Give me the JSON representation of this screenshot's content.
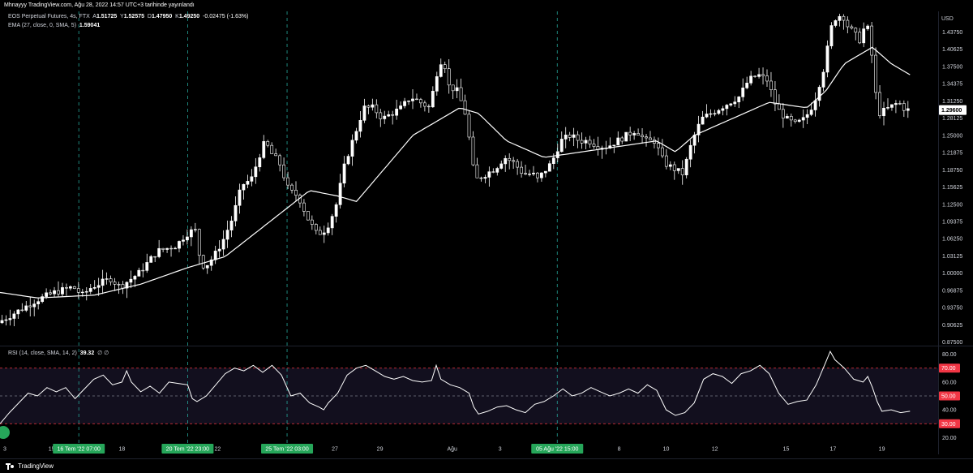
{
  "header": {
    "publish_info": "Mhnayyy TradingView.com, Ağu 28, 2022 14:57 UTC+3 tarihinde yayınlandı"
  },
  "legend": {
    "symbol": "EOS Perpetual Futures, 4s, FTX",
    "open_label": "A",
    "open": "1.51725",
    "high_label": "Y",
    "high": "1.52575",
    "low_label": "D",
    "low": "1.47950",
    "close_label": "K",
    "close": "1.49250",
    "change": "-0.02475 (-1.63%)",
    "ema_label": "EMA (27, close, 0, SMA, 5)",
    "ema_value": "1.59041",
    "rsi_label": "RSI (14, close, SMA, 14, 2)",
    "rsi_value": "39.32",
    "rsi_extra": "∅ ∅"
  },
  "footer": {
    "brand": "TradingView"
  },
  "colors": {
    "background": "#000000",
    "candle": "#ffffff",
    "ema": "#ffffff",
    "rsi_line": "#ffffff",
    "rsi_band": "#120f1e",
    "rsi_upper": "#f23645",
    "rsi_lower": "#f23645",
    "rsi_mid": "#787b86",
    "vline": "#26a69a",
    "grid": "#0d0d0d",
    "price_badge": "#ffffff",
    "date_badge": "#26a65a",
    "rsi_badge": "#f23645"
  },
  "chart_data": [
    {
      "type": "candlestick",
      "title": "EOS Perpetual Futures, 4s, FTX",
      "currency": "USD",
      "ylim": [
        0.87,
        1.475
      ],
      "y_ticks": [
        "1.43750",
        "1.40625",
        "1.37500",
        "1.34375",
        "1.31250",
        "1.28125",
        "1.25000",
        "1.21875",
        "1.18750",
        "1.15625",
        "1.12500",
        "1.09375",
        "1.06250",
        "1.03125",
        "1.00000",
        "0.96875",
        "0.93750",
        "0.90625",
        "0.87500"
      ],
      "last_price": "1.29600",
      "x_labels": [
        {
          "label": "15",
          "pos": 0.055
        },
        {
          "label": "18",
          "pos": 0.13
        },
        {
          "label": "22",
          "pos": 0.232
        },
        {
          "label": "27",
          "pos": 0.357
        },
        {
          "label": "29",
          "pos": 0.405
        },
        {
          "label": "Ağu",
          "pos": 0.482
        },
        {
          "label": "3",
          "pos": 0.533
        },
        {
          "label": "8",
          "pos": 0.66
        },
        {
          "label": "10",
          "pos": 0.71
        },
        {
          "label": "12",
          "pos": 0.762
        },
        {
          "label": "15",
          "pos": 0.838
        },
        {
          "label": "17",
          "pos": 0.888
        },
        {
          "label": "19",
          "pos": 0.94
        }
      ],
      "date_markers": [
        {
          "label": "16 Tem '22   07:00",
          "pos": 0.084
        },
        {
          "label": "20 Tem '22   23:00",
          "pos": 0.2
        },
        {
          "label": "25 Tem '22   03:00",
          "pos": 0.306
        },
        {
          "label": "05 Ağu '22   15:00",
          "pos": 0.594
        }
      ],
      "price_path": [
        [
          0,
          0.91
        ],
        [
          0.02,
          0.93
        ],
        [
          0.04,
          0.95
        ],
        [
          0.06,
          0.965
        ],
        [
          0.08,
          0.975
        ],
        [
          0.09,
          0.96
        ],
        [
          0.1,
          0.975
        ],
        [
          0.12,
          0.99
        ],
        [
          0.13,
          0.975
        ],
        [
          0.15,
          1.0
        ],
        [
          0.17,
          1.04
        ],
        [
          0.19,
          1.05
        ],
        [
          0.2,
          1.07
        ],
        [
          0.21,
          1.08
        ],
        [
          0.215,
          1.03
        ],
        [
          0.22,
          1.01
        ],
        [
          0.23,
          1.03
        ],
        [
          0.24,
          1.06
        ],
        [
          0.25,
          1.1
        ],
        [
          0.26,
          1.16
        ],
        [
          0.27,
          1.17
        ],
        [
          0.28,
          1.22
        ],
        [
          0.285,
          1.24
        ],
        [
          0.29,
          1.22
        ],
        [
          0.3,
          1.2
        ],
        [
          0.31,
          1.15
        ],
        [
          0.32,
          1.14
        ],
        [
          0.33,
          1.1
        ],
        [
          0.34,
          1.07
        ],
        [
          0.35,
          1.08
        ],
        [
          0.36,
          1.12
        ],
        [
          0.37,
          1.2
        ],
        [
          0.38,
          1.25
        ],
        [
          0.39,
          1.3
        ],
        [
          0.4,
          1.3
        ],
        [
          0.41,
          1.28
        ],
        [
          0.42,
          1.29
        ],
        [
          0.43,
          1.3
        ],
        [
          0.44,
          1.32
        ],
        [
          0.45,
          1.31
        ],
        [
          0.46,
          1.3
        ],
        [
          0.47,
          1.38
        ],
        [
          0.475,
          1.39
        ],
        [
          0.48,
          1.34
        ],
        [
          0.49,
          1.33
        ],
        [
          0.5,
          1.28
        ],
        [
          0.505,
          1.2
        ],
        [
          0.51,
          1.17
        ],
        [
          0.52,
          1.18
        ],
        [
          0.53,
          1.19
        ],
        [
          0.54,
          1.21
        ],
        [
          0.55,
          1.2
        ],
        [
          0.56,
          1.18
        ],
        [
          0.57,
          1.18
        ],
        [
          0.575,
          1.17
        ],
        [
          0.58,
          1.18
        ],
        [
          0.59,
          1.2
        ],
        [
          0.6,
          1.24
        ],
        [
          0.61,
          1.25
        ],
        [
          0.62,
          1.24
        ],
        [
          0.63,
          1.24
        ],
        [
          0.64,
          1.23
        ],
        [
          0.65,
          1.23
        ],
        [
          0.66,
          1.24
        ],
        [
          0.67,
          1.25
        ],
        [
          0.68,
          1.26
        ],
        [
          0.69,
          1.24
        ],
        [
          0.7,
          1.24
        ],
        [
          0.71,
          1.2
        ],
        [
          0.72,
          1.19
        ],
        [
          0.73,
          1.18
        ],
        [
          0.74,
          1.24
        ],
        [
          0.75,
          1.28
        ],
        [
          0.76,
          1.29
        ],
        [
          0.77,
          1.3
        ],
        [
          0.78,
          1.31
        ],
        [
          0.79,
          1.32
        ],
        [
          0.8,
          1.35
        ],
        [
          0.81,
          1.36
        ],
        [
          0.82,
          1.35
        ],
        [
          0.83,
          1.3
        ],
        [
          0.84,
          1.28
        ],
        [
          0.85,
          1.27
        ],
        [
          0.86,
          1.28
        ],
        [
          0.87,
          1.31
        ],
        [
          0.88,
          1.37
        ],
        [
          0.89,
          1.46
        ],
        [
          0.9,
          1.47
        ],
        [
          0.905,
          1.45
        ],
        [
          0.91,
          1.44
        ],
        [
          0.92,
          1.42
        ],
        [
          0.925,
          1.46
        ],
        [
          0.93,
          1.42
        ],
        [
          0.935,
          1.33
        ],
        [
          0.94,
          1.29
        ],
        [
          0.95,
          1.3
        ],
        [
          0.96,
          1.31
        ],
        [
          0.965,
          1.3
        ],
        [
          0.97,
          1.296
        ]
      ],
      "ema_path": [
        [
          0,
          0.965
        ],
        [
          0.04,
          0.955
        ],
        [
          0.1,
          0.96
        ],
        [
          0.15,
          0.98
        ],
        [
          0.2,
          1.01
        ],
        [
          0.24,
          1.03
        ],
        [
          0.3,
          1.11
        ],
        [
          0.33,
          1.15
        ],
        [
          0.36,
          1.14
        ],
        [
          0.38,
          1.13
        ],
        [
          0.4,
          1.17
        ],
        [
          0.44,
          1.25
        ],
        [
          0.47,
          1.28
        ],
        [
          0.49,
          1.3
        ],
        [
          0.51,
          1.29
        ],
        [
          0.54,
          1.24
        ],
        [
          0.58,
          1.21
        ],
        [
          0.62,
          1.22
        ],
        [
          0.66,
          1.23
        ],
        [
          0.7,
          1.24
        ],
        [
          0.72,
          1.22
        ],
        [
          0.74,
          1.25
        ],
        [
          0.78,
          1.28
        ],
        [
          0.82,
          1.31
        ],
        [
          0.86,
          1.3
        ],
        [
          0.88,
          1.33
        ],
        [
          0.9,
          1.38
        ],
        [
          0.93,
          1.41
        ],
        [
          0.95,
          1.38
        ],
        [
          0.97,
          1.36
        ]
      ]
    },
    {
      "type": "line",
      "title": "RSI (14, close, SMA, 14, 2)",
      "ylim": [
        15,
        85
      ],
      "y_ticks": [
        "80.00",
        "60.00",
        "40.00",
        "20.00"
      ],
      "levels": {
        "upper": 70,
        "middle": 50,
        "lower": 30
      },
      "level_labels": {
        "upper": "70.00",
        "middle": "50.00",
        "lower": "30.00"
      },
      "last_value": "39.32",
      "rsi_path": [
        [
          0,
          30
        ],
        [
          0.01,
          38
        ],
        [
          0.02,
          45
        ],
        [
          0.03,
          52
        ],
        [
          0.04,
          50
        ],
        [
          0.05,
          56
        ],
        [
          0.06,
          53
        ],
        [
          0.07,
          56
        ],
        [
          0.08,
          48
        ],
        [
          0.09,
          55
        ],
        [
          0.1,
          62
        ],
        [
          0.11,
          65
        ],
        [
          0.12,
          58
        ],
        [
          0.13,
          60
        ],
        [
          0.135,
          68
        ],
        [
          0.14,
          60
        ],
        [
          0.15,
          53
        ],
        [
          0.16,
          57
        ],
        [
          0.17,
          52
        ],
        [
          0.18,
          60
        ],
        [
          0.19,
          59
        ],
        [
          0.2,
          58
        ],
        [
          0.205,
          48
        ],
        [
          0.21,
          46
        ],
        [
          0.22,
          50
        ],
        [
          0.23,
          58
        ],
        [
          0.24,
          66
        ],
        [
          0.25,
          70
        ],
        [
          0.26,
          68
        ],
        [
          0.27,
          72
        ],
        [
          0.28,
          67
        ],
        [
          0.29,
          72
        ],
        [
          0.3,
          65
        ],
        [
          0.31,
          50
        ],
        [
          0.32,
          52
        ],
        [
          0.33,
          45
        ],
        [
          0.34,
          42
        ],
        [
          0.345,
          40
        ],
        [
          0.35,
          45
        ],
        [
          0.36,
          52
        ],
        [
          0.37,
          65
        ],
        [
          0.38,
          70
        ],
        [
          0.39,
          72
        ],
        [
          0.4,
          68
        ],
        [
          0.41,
          64
        ],
        [
          0.42,
          62
        ],
        [
          0.43,
          64
        ],
        [
          0.44,
          61
        ],
        [
          0.45,
          60
        ],
        [
          0.46,
          61
        ],
        [
          0.465,
          72
        ],
        [
          0.47,
          62
        ],
        [
          0.48,
          58
        ],
        [
          0.49,
          56
        ],
        [
          0.5,
          52
        ],
        [
          0.505,
          42
        ],
        [
          0.51,
          37
        ],
        [
          0.52,
          39
        ],
        [
          0.53,
          42
        ],
        [
          0.54,
          43
        ],
        [
          0.55,
          40
        ],
        [
          0.56,
          38
        ],
        [
          0.57,
          44
        ],
        [
          0.58,
          46
        ],
        [
          0.59,
          50
        ],
        [
          0.6,
          55
        ],
        [
          0.61,
          50
        ],
        [
          0.62,
          52
        ],
        [
          0.63,
          56
        ],
        [
          0.64,
          53
        ],
        [
          0.65,
          50
        ],
        [
          0.66,
          52
        ],
        [
          0.67,
          55
        ],
        [
          0.68,
          52
        ],
        [
          0.69,
          58
        ],
        [
          0.7,
          54
        ],
        [
          0.71,
          40
        ],
        [
          0.72,
          36
        ],
        [
          0.73,
          38
        ],
        [
          0.74,
          45
        ],
        [
          0.75,
          62
        ],
        [
          0.76,
          66
        ],
        [
          0.77,
          64
        ],
        [
          0.78,
          59
        ],
        [
          0.79,
          66
        ],
        [
          0.8,
          68
        ],
        [
          0.81,
          72
        ],
        [
          0.82,
          66
        ],
        [
          0.83,
          52
        ],
        [
          0.84,
          44
        ],
        [
          0.85,
          46
        ],
        [
          0.86,
          47
        ],
        [
          0.87,
          58
        ],
        [
          0.88,
          74
        ],
        [
          0.885,
          82
        ],
        [
          0.89,
          76
        ],
        [
          0.9,
          70
        ],
        [
          0.91,
          62
        ],
        [
          0.92,
          60
        ],
        [
          0.925,
          64
        ],
        [
          0.93,
          56
        ],
        [
          0.935,
          46
        ],
        [
          0.94,
          39
        ],
        [
          0.95,
          40
        ],
        [
          0.96,
          38
        ],
        [
          0.97,
          39
        ]
      ]
    }
  ]
}
